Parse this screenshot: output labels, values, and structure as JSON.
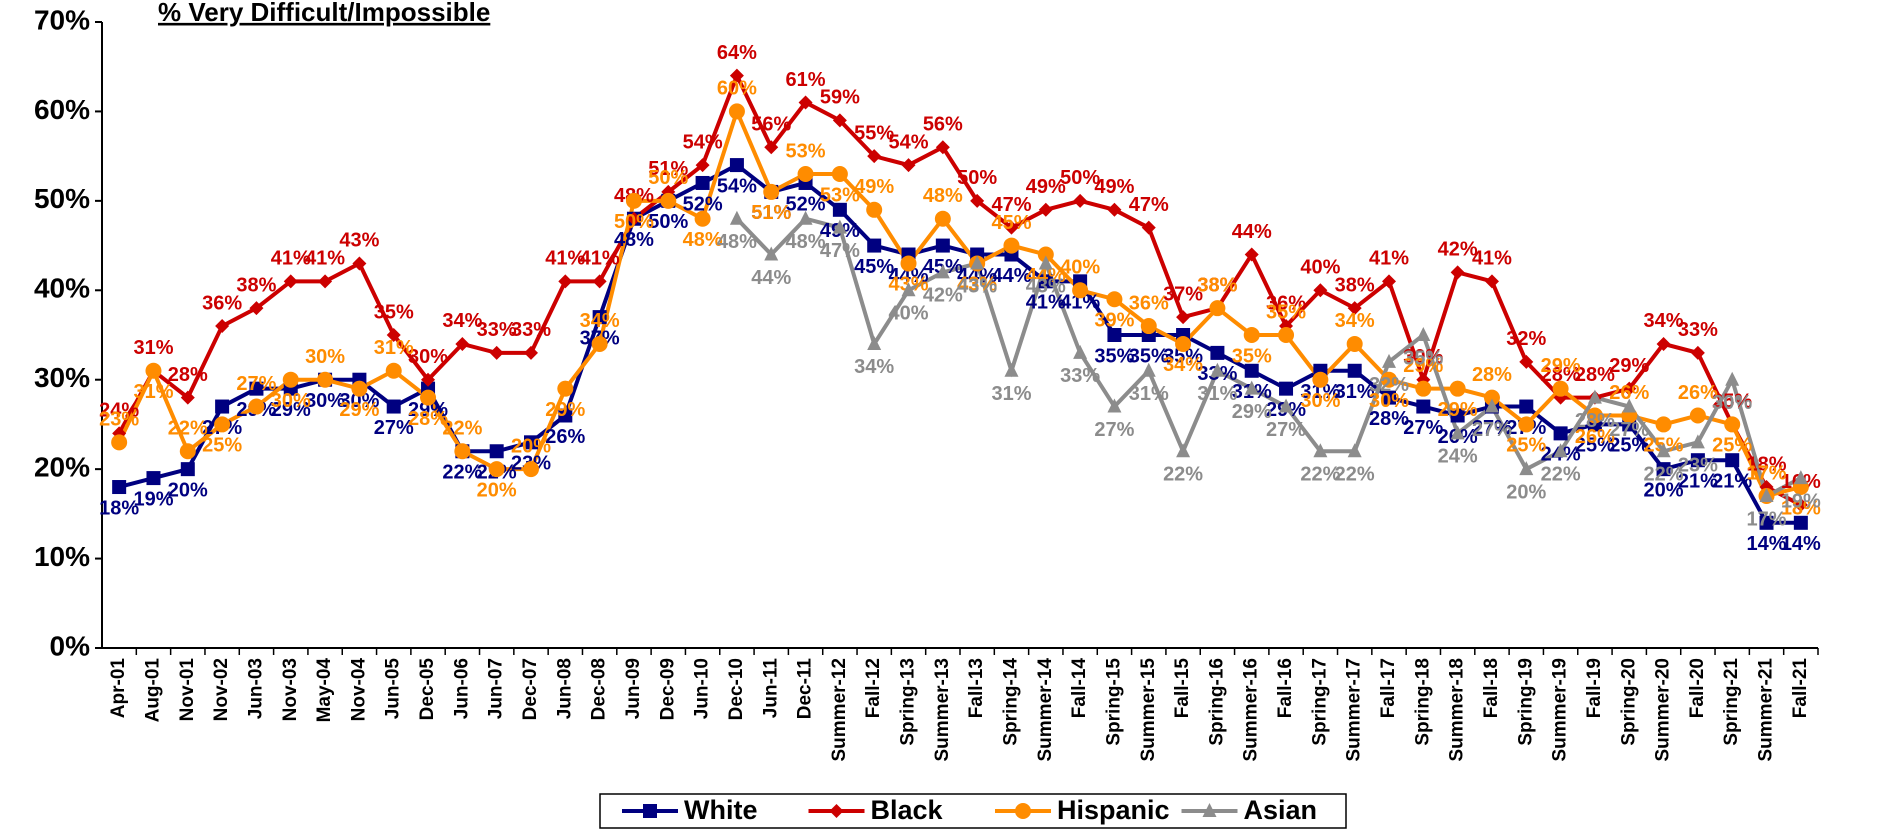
{
  "chart_data": {
    "type": "line",
    "title": "% Very Difficult/Impossible",
    "categories": [
      "Apr-01",
      "Aug-01",
      "Nov-01",
      "Nov-02",
      "Jun-03",
      "Nov-03",
      "May-04",
      "Nov-04",
      "Jun-05",
      "Dec-05",
      "Jun-06",
      "Jun-07",
      "Dec-07",
      "Jun-08",
      "Dec-08",
      "Jun-09",
      "Dec-09",
      "Jun-10",
      "Dec-10",
      "Jun-11",
      "Dec-11",
      "Summer-12",
      "Fall-12",
      "Spring-13",
      "Summer-13",
      "Fall-13",
      "Spring-14",
      "Summer-14",
      "Fall-14",
      "Spring-15",
      "Summer-15",
      "Fall-15",
      "Spring-16",
      "Summer-16",
      "Fall-16",
      "Spring-17",
      "Summer-17",
      "Fall-17",
      "Spring-18",
      "Summer-18",
      "Fall-18",
      "Spring-19",
      "Summer-19",
      "Fall-19",
      "Spring-20",
      "Summer-20",
      "Fall-20",
      "Spring-21",
      "Summer-21",
      "Fall-21"
    ],
    "series": [
      {
        "name": "White",
        "color": "#000080",
        "marker": "square",
        "values": [
          18,
          19,
          20,
          27,
          29,
          29,
          30,
          30,
          27,
          29,
          22,
          22,
          23,
          26,
          37,
          48,
          50,
          52,
          54,
          51,
          52,
          49,
          45,
          44,
          45,
          44,
          44,
          41,
          41,
          35,
          35,
          35,
          33,
          31,
          29,
          31,
          31,
          28,
          27,
          26,
          27,
          27,
          24,
          25,
          25,
          20,
          21,
          21,
          14,
          14
        ],
        "value_labels": [
          "18%",
          "19%",
          "20%",
          "27%",
          "29%",
          "29%",
          "30%",
          "30%",
          "27%",
          "29%",
          "22%",
          "22%",
          "23%",
          "26%",
          "37%",
          "48%",
          "50%",
          "52%",
          "54%",
          "51%",
          "52%",
          "49%",
          "45%",
          "44%",
          "45%",
          "44%",
          "44%",
          "41%",
          "41%",
          "35%",
          "35%",
          "35%",
          "33%",
          "31%",
          "29%",
          "31%",
          "31%",
          "28%",
          "27%",
          "26%",
          "27%",
          "27%",
          "24%",
          "25%",
          "25%",
          "20%",
          "21%",
          "21%",
          "14%",
          "14%"
        ]
      },
      {
        "name": "Black",
        "color": "#cc0000",
        "marker": "diamond",
        "values": [
          24,
          31,
          28,
          36,
          38,
          41,
          41,
          43,
          35,
          30,
          34,
          33,
          33,
          41,
          41,
          48,
          51,
          54,
          64,
          56,
          61,
          59,
          55,
          54,
          56,
          50,
          47,
          49,
          50,
          49,
          47,
          37,
          38,
          44,
          36,
          40,
          38,
          41,
          30,
          42,
          41,
          32,
          28,
          28,
          29,
          34,
          33,
          25,
          18,
          16
        ],
        "value_labels": [
          "24%",
          "31%",
          "28%",
          "36%",
          "38%",
          "41%",
          "41%",
          "43%",
          "35%",
          "30%",
          "34%",
          "33%",
          "33%",
          "41%",
          "41%",
          "48%",
          "51%",
          "54%",
          "64%",
          "56%",
          "61%",
          "59%",
          "55%",
          "54%",
          "56%",
          "50%",
          "47%",
          "49%",
          "50%",
          "49%",
          "47%",
          "37%",
          "38%",
          "44%",
          "36%",
          "40%",
          "38%",
          "41%",
          "30%",
          "42%",
          "41%",
          "32%",
          "28%",
          "28%",
          "29%",
          "34%",
          "33%",
          "25%",
          "18%",
          "16%"
        ]
      },
      {
        "name": "Hispanic",
        "color": "#ff8c00",
        "marker": "circle",
        "values": [
          23,
          31,
          22,
          25,
          27,
          30,
          30,
          29,
          31,
          28,
          22,
          20,
          20,
          29,
          34,
          50,
          50,
          48,
          60,
          51,
          53,
          53,
          49,
          43,
          48,
          43,
          45,
          44,
          40,
          39,
          36,
          34,
          38,
          35,
          35,
          30,
          34,
          30,
          29,
          29,
          28,
          25,
          29,
          26,
          26,
          25,
          26,
          25,
          17,
          18
        ],
        "value_labels": [
          "23%",
          "31%",
          "22%",
          "25%",
          "27%",
          "30%",
          "30%",
          "29%",
          "31%",
          "28%",
          "22%",
          "20%",
          "20%",
          "29%",
          "34%",
          "50%",
          "50%",
          "48%",
          "60%",
          "51%",
          "53%",
          "53%",
          "49%",
          "43%",
          "48%",
          "43%",
          "45%",
          "44%",
          "40%",
          "39%",
          "36%",
          "34%",
          "38%",
          "35%",
          "35%",
          "30%",
          "34%",
          "30%",
          "29%",
          "29%",
          "28%",
          "25%",
          "29%",
          "26%",
          "26%",
          "25%",
          "26%",
          "25%",
          "17%",
          "18%"
        ]
      },
      {
        "name": "Asian",
        "color": "#8c8c8c",
        "marker": "triangle",
        "values": [
          null,
          null,
          null,
          null,
          null,
          null,
          null,
          null,
          null,
          null,
          null,
          null,
          null,
          null,
          null,
          null,
          null,
          null,
          48,
          44,
          48,
          47,
          34,
          40,
          42,
          43,
          31,
          43,
          33,
          27,
          31,
          22,
          31,
          29,
          27,
          22,
          22,
          32,
          35,
          24,
          27,
          20,
          22,
          28,
          27,
          22,
          23,
          30,
          17,
          19
        ],
        "value_labels": [
          null,
          null,
          null,
          null,
          null,
          null,
          null,
          null,
          null,
          null,
          null,
          null,
          null,
          null,
          null,
          null,
          null,
          null,
          "48%",
          "44%",
          "48%",
          "47%",
          "34%",
          "40%",
          "42%",
          "43%",
          "31%",
          "43%",
          "33%",
          "27%",
          "31%",
          "22%",
          "31%",
          "29%",
          "27%",
          "22%",
          "22%",
          "32%",
          "35%",
          "24%",
          "27%",
          "20%",
          "22%",
          "28%",
          "27%",
          "22%",
          "23%",
          "30%",
          "17%",
          "19%"
        ]
      }
    ],
    "ylim": [
      0,
      70
    ],
    "yticks": [
      {
        "value": 0,
        "label": "0%"
      },
      {
        "value": 10,
        "label": "10%"
      },
      {
        "value": 20,
        "label": "20%"
      },
      {
        "value": 30,
        "label": "30%"
      },
      {
        "value": 40,
        "label": "40%"
      },
      {
        "value": 50,
        "label": "50%"
      },
      {
        "value": 60,
        "label": "60%"
      },
      {
        "value": 70,
        "label": "70%"
      }
    ],
    "legend": "bottom"
  }
}
